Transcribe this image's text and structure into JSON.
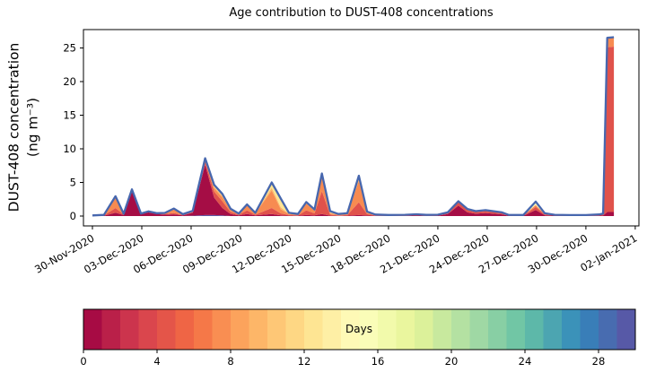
{
  "chart_data": {
    "type": "area",
    "title": "Age contribution to DUST-408 concentrations",
    "ylabel_line1": "DUST-408 concentration",
    "ylabel_line2": "(ng m⁻³)",
    "yticks": [
      0,
      5,
      10,
      15,
      20,
      25
    ],
    "ylim": [
      -1.4,
      27.7
    ],
    "x_start_date": "30-Nov-2020",
    "xtick_days": [
      0,
      3,
      6,
      9,
      12,
      15,
      18,
      21,
      24,
      27,
      30,
      33
    ],
    "xtick_labels": [
      "30-Nov-2020",
      "03-Dec-2020",
      "06-Dec-2020",
      "09-Dec-2020",
      "12-Dec-2020",
      "15-Dec-2020",
      "18-Dec-2020",
      "21-Dec-2020",
      "24-Dec-2020",
      "27-Dec-2020",
      "30-Dec-2020",
      "02-Jan-2021"
    ],
    "grid": false,
    "total_line_color": "#4767ae",
    "layer_order": [
      "lavender",
      "darkred",
      "red",
      "orange",
      "lightorange",
      "yellow",
      "paleyellow",
      "green"
    ],
    "layer_colors": {
      "lavender": "#5b59a6",
      "darkred": "#a50d45",
      "red": "#e0524b",
      "orange": "#f78b51",
      "lightorange": "#fdb668",
      "yellow": "#fee593",
      "paleyellow": "#fcf8b5",
      "green": "#93d3a4"
    },
    "points_format": "[day_offset, lavender, darkred, red, orange, lightorange, yellow, paleyellow, green]",
    "points": [
      [
        0.0,
        0,
        0.03,
        0.02,
        0.03,
        0,
        0,
        0,
        0.02
      ],
      [
        0.7,
        0,
        0.05,
        0.05,
        0.05,
        0,
        0,
        0,
        0.02
      ],
      [
        1.4,
        0,
        0.5,
        0.7,
        1.7,
        0,
        0,
        0,
        0.05
      ],
      [
        1.9,
        0,
        0.15,
        0.08,
        0.08,
        0,
        0,
        0,
        0.03
      ],
      [
        2.4,
        0,
        3.7,
        0.15,
        0.1,
        0,
        0,
        0,
        0.02
      ],
      [
        2.95,
        0,
        0.25,
        0.05,
        0.05,
        0,
        0,
        0,
        0.02
      ],
      [
        3.4,
        0,
        0.55,
        0.08,
        0.05,
        0,
        0,
        0,
        0.02
      ],
      [
        3.9,
        0,
        0.3,
        0.05,
        0.05,
        0,
        0,
        0,
        0.02
      ],
      [
        4.4,
        0,
        0.2,
        0.1,
        0.15,
        0,
        0,
        0,
        0.02
      ],
      [
        4.95,
        0,
        0.25,
        0.2,
        0.65,
        0,
        0,
        0,
        0.02
      ],
      [
        5.5,
        0,
        0.1,
        0.05,
        0.1,
        0,
        0,
        0,
        0.03
      ],
      [
        6.1,
        0.05,
        0.45,
        0.1,
        0.15,
        0,
        0,
        0,
        0.03
      ],
      [
        6.85,
        0.15,
        7.5,
        0.45,
        0.25,
        0,
        0.1,
        0.1,
        0.05
      ],
      [
        7.4,
        0.15,
        2.6,
        0.9,
        0.5,
        0.2,
        0.15,
        0.1,
        0.05
      ],
      [
        7.9,
        0.1,
        1.1,
        1.0,
        0.6,
        0.2,
        0.15,
        0.1,
        0.05
      ],
      [
        8.4,
        0,
        0.3,
        0.3,
        0.3,
        0.1,
        0.05,
        0,
        0.03
      ],
      [
        8.9,
        0,
        0.1,
        0.1,
        0.15,
        0,
        0,
        0,
        0.03
      ],
      [
        9.4,
        0,
        0.3,
        0.55,
        0.75,
        0.1,
        0,
        0,
        0.03
      ],
      [
        9.9,
        0,
        0.1,
        0.1,
        0.2,
        0.05,
        0,
        0,
        0.03
      ],
      [
        10.9,
        0,
        0.3,
        0.9,
        2.6,
        0.4,
        0.6,
        0.15,
        0.05
      ],
      [
        11.45,
        0,
        0.1,
        0.3,
        0.6,
        0.3,
        1.1,
        0.15,
        0.05
      ],
      [
        11.95,
        0,
        0.05,
        0.1,
        0.15,
        0.05,
        0.1,
        0,
        0.03
      ],
      [
        12.5,
        0,
        0.05,
        0.05,
        0.1,
        0.03,
        0.05,
        0,
        0.03
      ],
      [
        13.0,
        0,
        0.15,
        0.7,
        1.0,
        0.15,
        0.05,
        0,
        0.03
      ],
      [
        13.5,
        0,
        0.1,
        0.3,
        0.4,
        0.1,
        0.05,
        0,
        0.03
      ],
      [
        13.95,
        0,
        0.3,
        3.4,
        2.2,
        0.2,
        0.15,
        0.05,
        0.03
      ],
      [
        14.45,
        0,
        0.05,
        0.15,
        0.2,
        0.1,
        0.15,
        0.05,
        0.03
      ],
      [
        14.95,
        0,
        0.03,
        0.07,
        0.1,
        0.03,
        0.05,
        0,
        0.03
      ],
      [
        15.5,
        0,
        0.05,
        0.1,
        0.15,
        0.05,
        0.05,
        0,
        0.03
      ],
      [
        16.2,
        0,
        0.15,
        1.9,
        3.2,
        0.25,
        0.4,
        0.05,
        0.05
      ],
      [
        16.7,
        0,
        0.08,
        0.2,
        0.2,
        0.05,
        0.1,
        0,
        0.03
      ],
      [
        17.2,
        0,
        0.04,
        0.06,
        0.06,
        0,
        0.02,
        0,
        0.04
      ],
      [
        18.0,
        0,
        0.03,
        0.04,
        0.04,
        0,
        0,
        0,
        0.05
      ],
      [
        19.0,
        0,
        0.04,
        0.05,
        0.05,
        0,
        0,
        0,
        0.05
      ],
      [
        19.7,
        0,
        0.08,
        0.08,
        0.06,
        0,
        0,
        0,
        0.05
      ],
      [
        20.3,
        0,
        0.04,
        0.04,
        0.04,
        0,
        0,
        0,
        0.05
      ],
      [
        21.0,
        0,
        0.05,
        0.05,
        0.05,
        0,
        0,
        0,
        0.05
      ],
      [
        21.6,
        0,
        0.3,
        0.12,
        0.08,
        0,
        0,
        0,
        0.05
      ],
      [
        22.25,
        0,
        1.55,
        0.5,
        0.1,
        0,
        0,
        0,
        0.05
      ],
      [
        22.8,
        0,
        0.55,
        0.35,
        0.1,
        0,
        0,
        0,
        0.05
      ],
      [
        23.3,
        0,
        0.35,
        0.25,
        0.08,
        0,
        0,
        0,
        0.05
      ],
      [
        23.9,
        0,
        0.45,
        0.3,
        0.08,
        0,
        0,
        0,
        0.05
      ],
      [
        24.9,
        0,
        0.25,
        0.2,
        0.05,
        0,
        0,
        0,
        0.04
      ],
      [
        25.3,
        0,
        0.05,
        0.04,
        0.04,
        0,
        0,
        0,
        0.04
      ],
      [
        26.2,
        0,
        0.04,
        0.04,
        0.04,
        0,
        0,
        0,
        0.04
      ],
      [
        26.95,
        0,
        0.9,
        0.45,
        0.25,
        0.05,
        0.1,
        0.35,
        0.05
      ],
      [
        27.5,
        0,
        0.12,
        0.1,
        0.08,
        0,
        0.02,
        0.05,
        0.04
      ],
      [
        28.1,
        0,
        0.05,
        0.05,
        0.05,
        0,
        0,
        0,
        0.04
      ],
      [
        29.0,
        0,
        0.04,
        0.04,
        0.03,
        0,
        0,
        0,
        0.04
      ],
      [
        30.0,
        0,
        0.04,
        0.04,
        0.03,
        0,
        0,
        0,
        0.04
      ],
      [
        30.8,
        0,
        0.06,
        0.08,
        0.06,
        0,
        0,
        0,
        0.04
      ],
      [
        31.05,
        0,
        0.1,
        0.15,
        0.08,
        0,
        0,
        0,
        0.04
      ],
      [
        31.3,
        0,
        0.6,
        24.5,
        1.3,
        0,
        0,
        0,
        0.1
      ],
      [
        31.7,
        0,
        0.6,
        24.6,
        1.3,
        0,
        0,
        0,
        0.1
      ]
    ],
    "colorbar": {
      "label": "Days",
      "vmin": 0,
      "vmax": 30,
      "ticks": [
        0,
        4,
        8,
        12,
        16,
        20,
        24,
        28
      ],
      "n_segments": 30,
      "colors": [
        "#a70b44",
        "#ba2049",
        "#cc344d",
        "#da464d",
        "#e45549",
        "#ef6545",
        "#f57848",
        "#f98e52",
        "#fca35c",
        "#fdb668",
        "#fec776",
        "#fed784",
        "#fee593",
        "#feefa5",
        "#fef9b6",
        "#fafdb8",
        "#f2faab",
        "#eaf69e",
        "#dcf19a",
        "#c8e99e",
        "#b4e1a2",
        "#9fd8a4",
        "#88cfa4",
        "#71c6a5",
        "#5db8a9",
        "#4ca5b1",
        "#3b92b9",
        "#397eb8",
        "#486cb0",
        "#5759a7"
      ]
    }
  }
}
